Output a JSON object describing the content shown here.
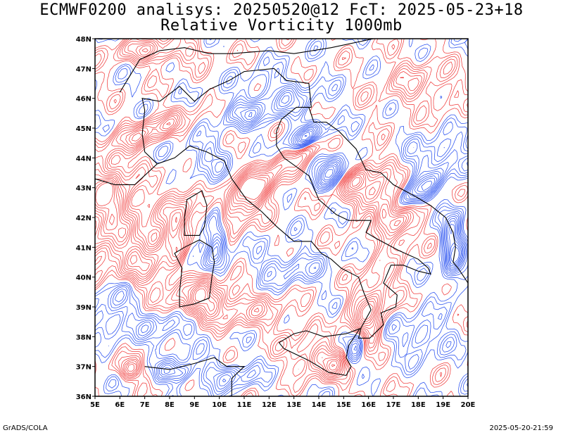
{
  "title_line1": "ECMWF0200 analisys: 20250520@12 FcT: 2025-05-23+18",
  "title_line2": "Relative Vorticity 1000mb",
  "footer_left": "GrADS/COLA",
  "footer_right": "2025-05-20-21:59",
  "map": {
    "lon_range": [
      5,
      20
    ],
    "lat_range": [
      36,
      48
    ],
    "lon_labels": [
      "5E",
      "6E",
      "7E",
      "8E",
      "9E",
      "10E",
      "11E",
      "12E",
      "13E",
      "14E",
      "15E",
      "16E",
      "17E",
      "18E",
      "19E",
      "20E"
    ],
    "lat_labels": [
      "36N",
      "37N",
      "38N",
      "39N",
      "40N",
      "41N",
      "42N",
      "43N",
      "44N",
      "45N",
      "46N",
      "47N",
      "48N"
    ],
    "colors": {
      "positive": "#f03c3c",
      "negative": "#2850f0",
      "coast": "#000000"
    }
  }
}
